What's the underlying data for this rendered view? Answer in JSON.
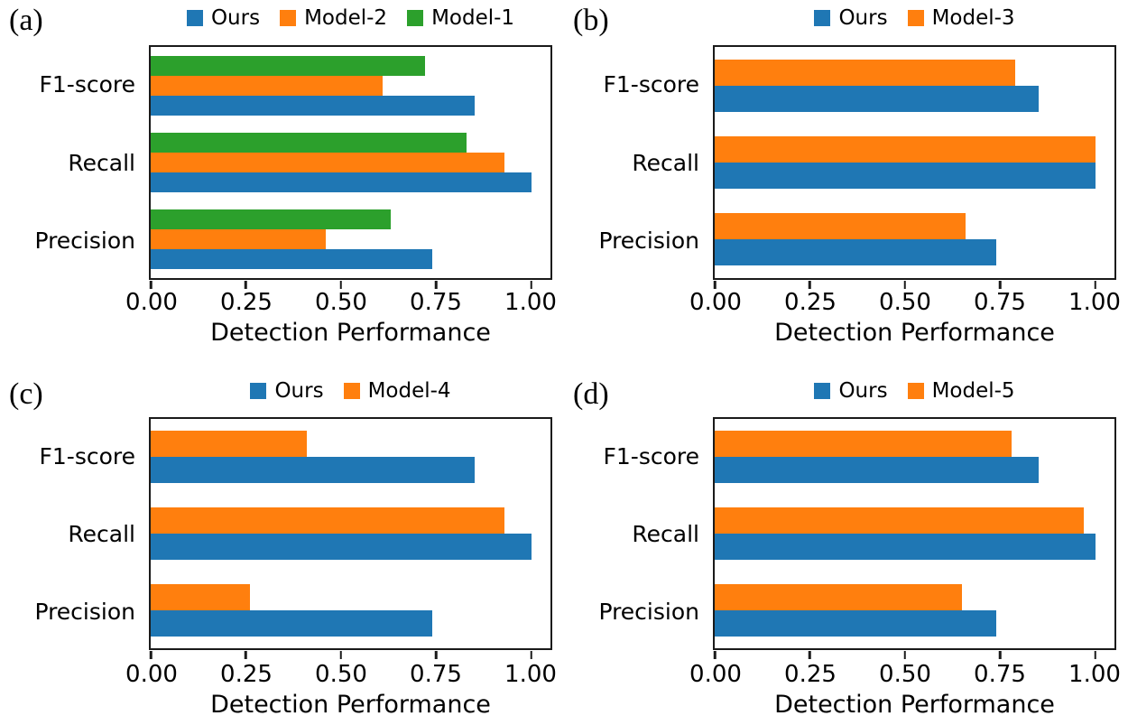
{
  "colors": {
    "ours_blue": "#1f77b4",
    "compare_orange": "#ff7f0e",
    "compare_green": "#2ca02c",
    "axis_black": "#1a1a1a"
  },
  "chart_data": [
    {
      "panel_label": "(a)",
      "type": "bar",
      "orientation": "horizontal",
      "xlabel": "Detection Performance",
      "x_ticks": [
        "0.00",
        "0.25",
        "0.50",
        "0.75",
        "1.00"
      ],
      "xlim": [
        0,
        1.05
      ],
      "legend_position": "top-center",
      "grid": false,
      "categories": [
        "F1-score",
        "Recall",
        "Precision"
      ],
      "series": [
        {
          "name": "Ours",
          "color": "#1f77b4",
          "values": [
            0.85,
            1.0,
            0.74
          ]
        },
        {
          "name": "Model-2",
          "color": "#ff7f0e",
          "values": [
            0.61,
            0.93,
            0.46
          ]
        },
        {
          "name": "Model-1",
          "color": "#2ca02c",
          "values": [
            0.72,
            0.83,
            0.63
          ]
        }
      ]
    },
    {
      "panel_label": "(b)",
      "type": "bar",
      "orientation": "horizontal",
      "xlabel": "Detection Performance",
      "x_ticks": [
        "0.00",
        "0.25",
        "0.50",
        "0.75",
        "1.00"
      ],
      "xlim": [
        0,
        1.05
      ],
      "legend_position": "top-center",
      "grid": false,
      "categories": [
        "F1-score",
        "Recall",
        "Precision"
      ],
      "series": [
        {
          "name": "Ours",
          "color": "#1f77b4",
          "values": [
            0.85,
            1.0,
            0.74
          ]
        },
        {
          "name": "Model-3",
          "color": "#ff7f0e",
          "values": [
            0.79,
            1.0,
            0.66
          ]
        }
      ]
    },
    {
      "panel_label": "(c)",
      "type": "bar",
      "orientation": "horizontal",
      "xlabel": "Detection Performance",
      "x_ticks": [
        "0.00",
        "0.25",
        "0.50",
        "0.75",
        "1.00"
      ],
      "xlim": [
        0,
        1.05
      ],
      "legend_position": "top-center",
      "grid": false,
      "categories": [
        "F1-score",
        "Recall",
        "Precision"
      ],
      "series": [
        {
          "name": "Ours",
          "color": "#1f77b4",
          "values": [
            0.85,
            1.0,
            0.74
          ]
        },
        {
          "name": "Model-4",
          "color": "#ff7f0e",
          "values": [
            0.41,
            0.93,
            0.26
          ]
        }
      ]
    },
    {
      "panel_label": "(d)",
      "type": "bar",
      "orientation": "horizontal",
      "xlabel": "Detection Performance",
      "x_ticks": [
        "0.00",
        "0.25",
        "0.50",
        "0.75",
        "1.00"
      ],
      "xlim": [
        0,
        1.05
      ],
      "legend_position": "top-center",
      "grid": false,
      "categories": [
        "F1-score",
        "Recall",
        "Precision"
      ],
      "series": [
        {
          "name": "Ours",
          "color": "#1f77b4",
          "values": [
            0.85,
            1.0,
            0.74
          ]
        },
        {
          "name": "Model-5",
          "color": "#ff7f0e",
          "values": [
            0.78,
            0.97,
            0.65
          ]
        }
      ]
    }
  ]
}
